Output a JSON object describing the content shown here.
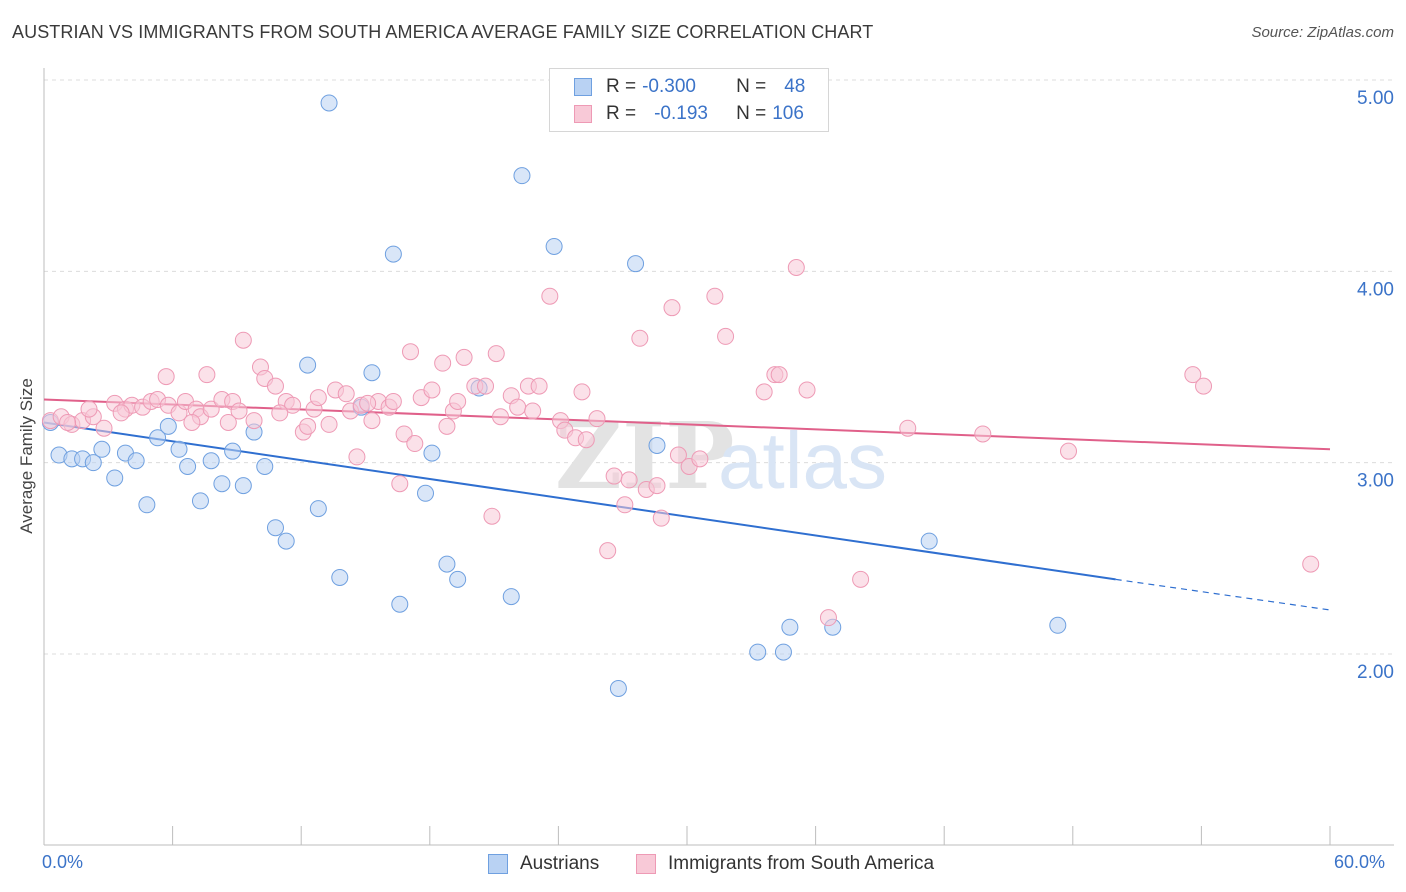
{
  "title": "AUSTRIAN VS IMMIGRANTS FROM SOUTH AMERICA AVERAGE FAMILY SIZE CORRELATION CHART",
  "source": "Source: ZipAtlas.com",
  "watermark": {
    "zip": "ZIP",
    "atlas": "atlas"
  },
  "legend": {
    "rows": [
      {
        "r_label": "R = ",
        "r_value": "-0.300",
        "n_label": "N = ",
        "n_value": "48"
      },
      {
        "r_label": "R = ",
        "r_value": "-0.193",
        "n_label": "N = ",
        "n_value": "106"
      }
    ]
  },
  "bottom_legend": {
    "series1": "Austrians",
    "series2": "Immigrants from South America"
  },
  "x_axis": {
    "min_label": "0.0%",
    "max_label": "60.0%"
  },
  "chart_data": {
    "type": "scatter",
    "title": "AUSTRIAN VS IMMIGRANTS FROM SOUTH AMERICA AVERAGE FAMILY SIZE CORRELATION CHART",
    "xlabel": "",
    "ylabel": "Average Family Size",
    "xlim": [
      0,
      60
    ],
    "ylim": [
      1.0,
      5.1
    ],
    "y_ticks": [
      2.0,
      3.0,
      4.0,
      5.0
    ],
    "y_tick_labels": [
      "2.00",
      "3.00",
      "4.00",
      "5.00"
    ],
    "grid": true,
    "legend_position": "top-center",
    "series": [
      {
        "name": "Austrians",
        "color": "#6fa0e0",
        "fill": "#b9d2f3",
        "line_color": "#2f6fd0",
        "R": -0.3,
        "N": 48,
        "trend": {
          "x0": 0,
          "y0": 3.21,
          "x1": 50,
          "y1": 2.39,
          "dashed_to": 60,
          "dashed_y": 2.23
        },
        "points": [
          [
            0.3,
            3.21
          ],
          [
            0.7,
            3.04
          ],
          [
            1.3,
            3.02
          ],
          [
            1.8,
            3.02
          ],
          [
            2.3,
            3.0
          ],
          [
            2.7,
            3.07
          ],
          [
            3.3,
            2.92
          ],
          [
            3.8,
            3.05
          ],
          [
            4.3,
            3.01
          ],
          [
            4.8,
            2.78
          ],
          [
            5.3,
            3.13
          ],
          [
            5.8,
            3.19
          ],
          [
            6.3,
            3.07
          ],
          [
            6.7,
            2.98
          ],
          [
            7.3,
            2.8
          ],
          [
            7.8,
            3.01
          ],
          [
            8.3,
            2.89
          ],
          [
            8.8,
            3.06
          ],
          [
            9.3,
            2.88
          ],
          [
            9.8,
            3.16
          ],
          [
            10.3,
            2.98
          ],
          [
            10.8,
            2.66
          ],
          [
            11.3,
            2.59
          ],
          [
            12.3,
            3.51
          ],
          [
            12.8,
            2.76
          ],
          [
            13.3,
            4.88
          ],
          [
            13.8,
            2.4
          ],
          [
            14.8,
            3.29
          ],
          [
            15.3,
            3.47
          ],
          [
            16.3,
            4.09
          ],
          [
            16.6,
            2.26
          ],
          [
            17.8,
            2.84
          ],
          [
            18.1,
            3.05
          ],
          [
            18.8,
            2.47
          ],
          [
            19.3,
            2.39
          ],
          [
            20.3,
            3.39
          ],
          [
            21.8,
            2.3
          ],
          [
            22.3,
            4.5
          ],
          [
            23.8,
            4.13
          ],
          [
            26.8,
            1.82
          ],
          [
            27.6,
            4.04
          ],
          [
            28.6,
            3.09
          ],
          [
            33.3,
            2.01
          ],
          [
            34.8,
            2.14
          ],
          [
            34.5,
            2.01
          ],
          [
            36.8,
            2.14
          ],
          [
            41.3,
            2.59
          ],
          [
            47.3,
            2.15
          ]
        ]
      },
      {
        "name": "Immigrants from South America",
        "color": "#ee9ab5",
        "fill": "#f8c9d7",
        "line_color": "#e0608a",
        "R": -0.193,
        "N": 106,
        "trend": {
          "x0": 0,
          "y0": 3.33,
          "x1": 60,
          "y1": 3.07
        },
        "points": [
          [
            0.3,
            3.22
          ],
          [
            0.8,
            3.24
          ],
          [
            1.3,
            3.2
          ],
          [
            1.8,
            3.22
          ],
          [
            2.3,
            3.24
          ],
          [
            2.8,
            3.18
          ],
          [
            3.3,
            3.31
          ],
          [
            3.8,
            3.28
          ],
          [
            4.1,
            3.3
          ],
          [
            4.6,
            3.29
          ],
          [
            5.0,
            3.32
          ],
          [
            5.3,
            3.33
          ],
          [
            5.8,
            3.3
          ],
          [
            5.7,
            3.45
          ],
          [
            6.3,
            3.26
          ],
          [
            6.6,
            3.32
          ],
          [
            7.1,
            3.28
          ],
          [
            7.3,
            3.24
          ],
          [
            7.6,
            3.46
          ],
          [
            7.8,
            3.28
          ],
          [
            8.3,
            3.33
          ],
          [
            8.8,
            3.32
          ],
          [
            9.1,
            3.27
          ],
          [
            9.3,
            3.64
          ],
          [
            9.8,
            3.22
          ],
          [
            10.1,
            3.5
          ],
          [
            10.3,
            3.44
          ],
          [
            10.8,
            3.4
          ],
          [
            11.3,
            3.32
          ],
          [
            11.6,
            3.3
          ],
          [
            12.1,
            3.16
          ],
          [
            12.6,
            3.28
          ],
          [
            12.8,
            3.34
          ],
          [
            13.3,
            3.2
          ],
          [
            13.6,
            3.38
          ],
          [
            14.1,
            3.36
          ],
          [
            14.3,
            3.27
          ],
          [
            14.6,
            3.03
          ],
          [
            14.8,
            3.3
          ],
          [
            15.3,
            3.22
          ],
          [
            15.6,
            3.32
          ],
          [
            16.1,
            3.29
          ],
          [
            16.3,
            3.32
          ],
          [
            16.8,
            3.15
          ],
          [
            17.1,
            3.58
          ],
          [
            17.6,
            3.34
          ],
          [
            18.1,
            3.38
          ],
          [
            18.6,
            3.52
          ],
          [
            18.8,
            3.19
          ],
          [
            19.1,
            3.27
          ],
          [
            19.3,
            3.32
          ],
          [
            19.6,
            3.55
          ],
          [
            20.1,
            3.4
          ],
          [
            20.6,
            3.4
          ],
          [
            21.1,
            3.57
          ],
          [
            21.3,
            3.24
          ],
          [
            21.8,
            3.35
          ],
          [
            22.1,
            3.29
          ],
          [
            22.6,
            3.4
          ],
          [
            22.8,
            3.27
          ],
          [
            23.1,
            3.4
          ],
          [
            23.6,
            3.87
          ],
          [
            24.1,
            3.22
          ],
          [
            24.3,
            3.17
          ],
          [
            24.8,
            3.13
          ],
          [
            25.1,
            3.37
          ],
          [
            25.3,
            3.12
          ],
          [
            25.8,
            3.23
          ],
          [
            26.3,
            2.54
          ],
          [
            26.6,
            2.93
          ],
          [
            27.1,
            2.78
          ],
          [
            27.3,
            2.91
          ],
          [
            27.8,
            3.65
          ],
          [
            28.1,
            2.86
          ],
          [
            28.6,
            2.88
          ],
          [
            28.8,
            2.71
          ],
          [
            29.3,
            3.81
          ],
          [
            29.6,
            3.04
          ],
          [
            30.1,
            2.98
          ],
          [
            30.6,
            3.02
          ],
          [
            31.3,
            3.87
          ],
          [
            31.8,
            3.66
          ],
          [
            33.6,
            3.37
          ],
          [
            34.1,
            3.46
          ],
          [
            34.3,
            3.46
          ],
          [
            35.1,
            4.02
          ],
          [
            35.6,
            3.38
          ],
          [
            36.6,
            2.19
          ],
          [
            38.1,
            2.39
          ],
          [
            40.3,
            3.18
          ],
          [
            43.8,
            3.15
          ],
          [
            47.8,
            3.06
          ],
          [
            53.6,
            3.46
          ],
          [
            54.1,
            3.4
          ],
          [
            59.1,
            2.47
          ],
          [
            16.6,
            2.89
          ],
          [
            17.3,
            3.1
          ],
          [
            20.9,
            2.72
          ],
          [
            15.1,
            3.31
          ],
          [
            12.3,
            3.19
          ],
          [
            8.6,
            3.21
          ],
          [
            11.0,
            3.26
          ],
          [
            6.9,
            3.21
          ],
          [
            3.6,
            3.26
          ],
          [
            2.1,
            3.28
          ],
          [
            1.1,
            3.21
          ]
        ]
      }
    ]
  }
}
